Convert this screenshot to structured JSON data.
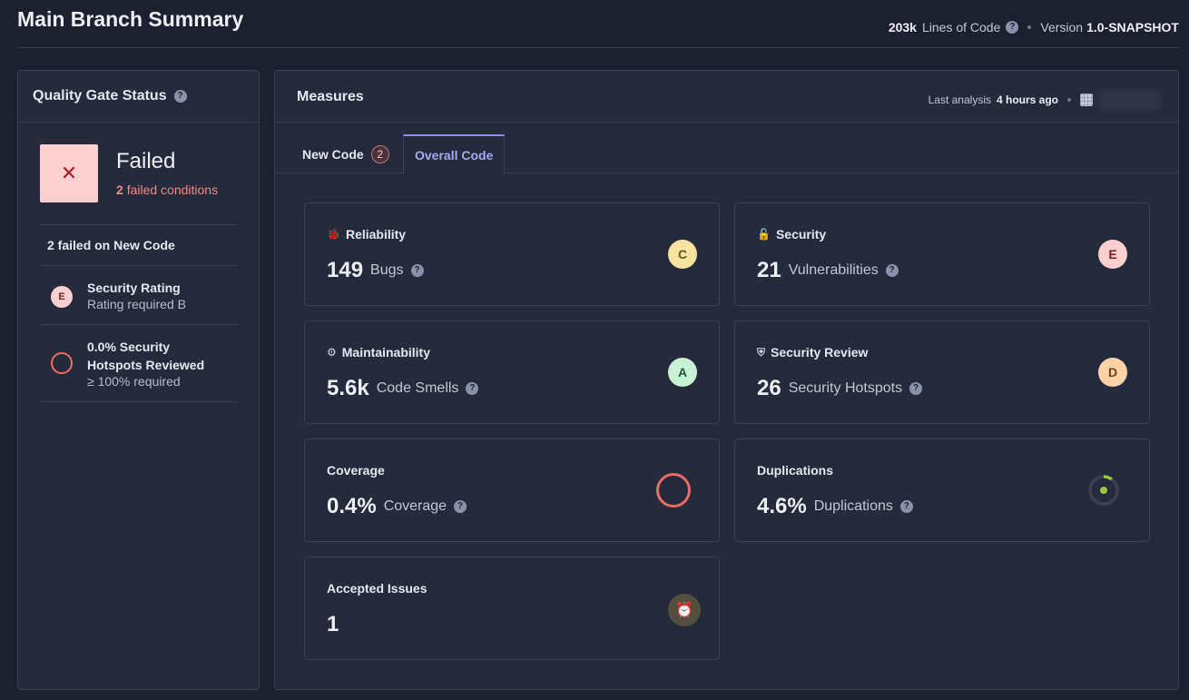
{
  "header": {
    "title": "Main Branch Summary",
    "loc_value": "203k",
    "loc_label": "Lines of Code",
    "version_label": "Version",
    "version_value": "1.0-SNAPSHOT"
  },
  "quality_gate": {
    "title": "Quality Gate Status",
    "status": "Failed",
    "failed_count": "2",
    "failed_label": "failed conditions",
    "list_header": "2 failed on New Code",
    "conditions": [
      {
        "rating": "E",
        "title": "Security Rating",
        "detail": "Rating required B"
      },
      {
        "title": "0.0% Security Hotspots Reviewed",
        "detail": "≥ 100% required"
      }
    ]
  },
  "measures": {
    "title": "Measures",
    "last_analysis_label": "Last analysis",
    "last_analysis_value": "4 hours ago",
    "tabs": [
      {
        "label": "New Code",
        "count": "2"
      },
      {
        "label": "Overall Code"
      }
    ],
    "cards": {
      "reliability": {
        "label": "Reliability",
        "value": "149",
        "unit": "Bugs",
        "grade": "C",
        "icon": "bug-icon"
      },
      "security": {
        "label": "Security",
        "value": "21",
        "unit": "Vulnerabilities",
        "grade": "E",
        "icon": "lock-icon"
      },
      "maintainability": {
        "label": "Maintainability",
        "value": "5.6k",
        "unit": "Code Smells",
        "grade": "A",
        "icon": "gear-icon"
      },
      "security_review": {
        "label": "Security Review",
        "value": "26",
        "unit": "Security Hotspots",
        "grade": "D",
        "icon": "shield-icon"
      },
      "coverage": {
        "label": "Coverage",
        "value": "0.4%",
        "unit": "Coverage",
        "percent": 0.4
      },
      "duplications": {
        "label": "Duplications",
        "value": "4.6%",
        "unit": "Duplications",
        "percent": 4.6
      },
      "accepted": {
        "label": "Accepted Issues",
        "value": "1",
        "icon": "snooze-icon"
      }
    }
  },
  "colors": {
    "background": "#1d212f",
    "panel": "#262b3b",
    "error": "#ee6b67",
    "accent": "#8d90e8"
  }
}
